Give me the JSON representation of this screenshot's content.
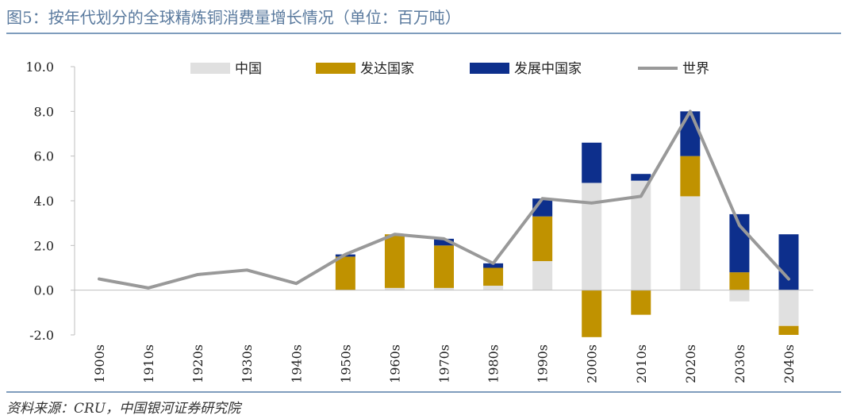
{
  "title": "图5：按年代划分的全球精炼铜消费量增长情况（单位：百万吨）",
  "source": "资料来源：CRU，中国银河证券研究院",
  "colors": {
    "china": "#e0e0e0",
    "developed": "#c09200",
    "developing": "#0d2f8c",
    "world": "#999999"
  },
  "chart_data": {
    "type": "bar",
    "stacked": true,
    "categories": [
      "1900s",
      "1910s",
      "1920s",
      "1930s",
      "1940s",
      "1950s",
      "1960s",
      "1970s",
      "1980s",
      "1990s",
      "2000s",
      "2010s",
      "2020s",
      "2030s",
      "2040s"
    ],
    "series": [
      {
        "name": "中国",
        "key": "china",
        "values": [
          0,
          0,
          0,
          0,
          0,
          0,
          0.1,
          0.1,
          0.2,
          1.3,
          4.8,
          4.9,
          4.2,
          -0.5,
          -1.6
        ]
      },
      {
        "name": "发达国家",
        "key": "developed",
        "values": [
          0,
          0,
          0,
          0,
          0,
          1.5,
          2.4,
          1.9,
          0.8,
          2.0,
          -2.1,
          -1.1,
          1.8,
          0.8,
          -0.4
        ]
      },
      {
        "name": "发展中国家",
        "key": "developing",
        "values": [
          0,
          0,
          0,
          0,
          0,
          0.1,
          0,
          0.3,
          0.2,
          0.8,
          1.8,
          0.3,
          2.0,
          2.6,
          2.5
        ]
      },
      {
        "name": "世界",
        "key": "world",
        "type": "line",
        "values": [
          0.5,
          0.1,
          0.7,
          0.9,
          0.3,
          1.6,
          2.5,
          2.3,
          1.2,
          4.1,
          3.9,
          4.2,
          8.0,
          2.9,
          0.5
        ]
      }
    ],
    "ylim": [
      -2.0,
      10.0
    ],
    "yticks": [
      "-2.0",
      "0.0",
      "2.0",
      "4.0",
      "6.0",
      "8.0",
      "10.0"
    ],
    "legend": [
      "中国",
      "发达国家",
      "发展中国家",
      "世界"
    ],
    "legend_position": "top",
    "grid": false
  }
}
